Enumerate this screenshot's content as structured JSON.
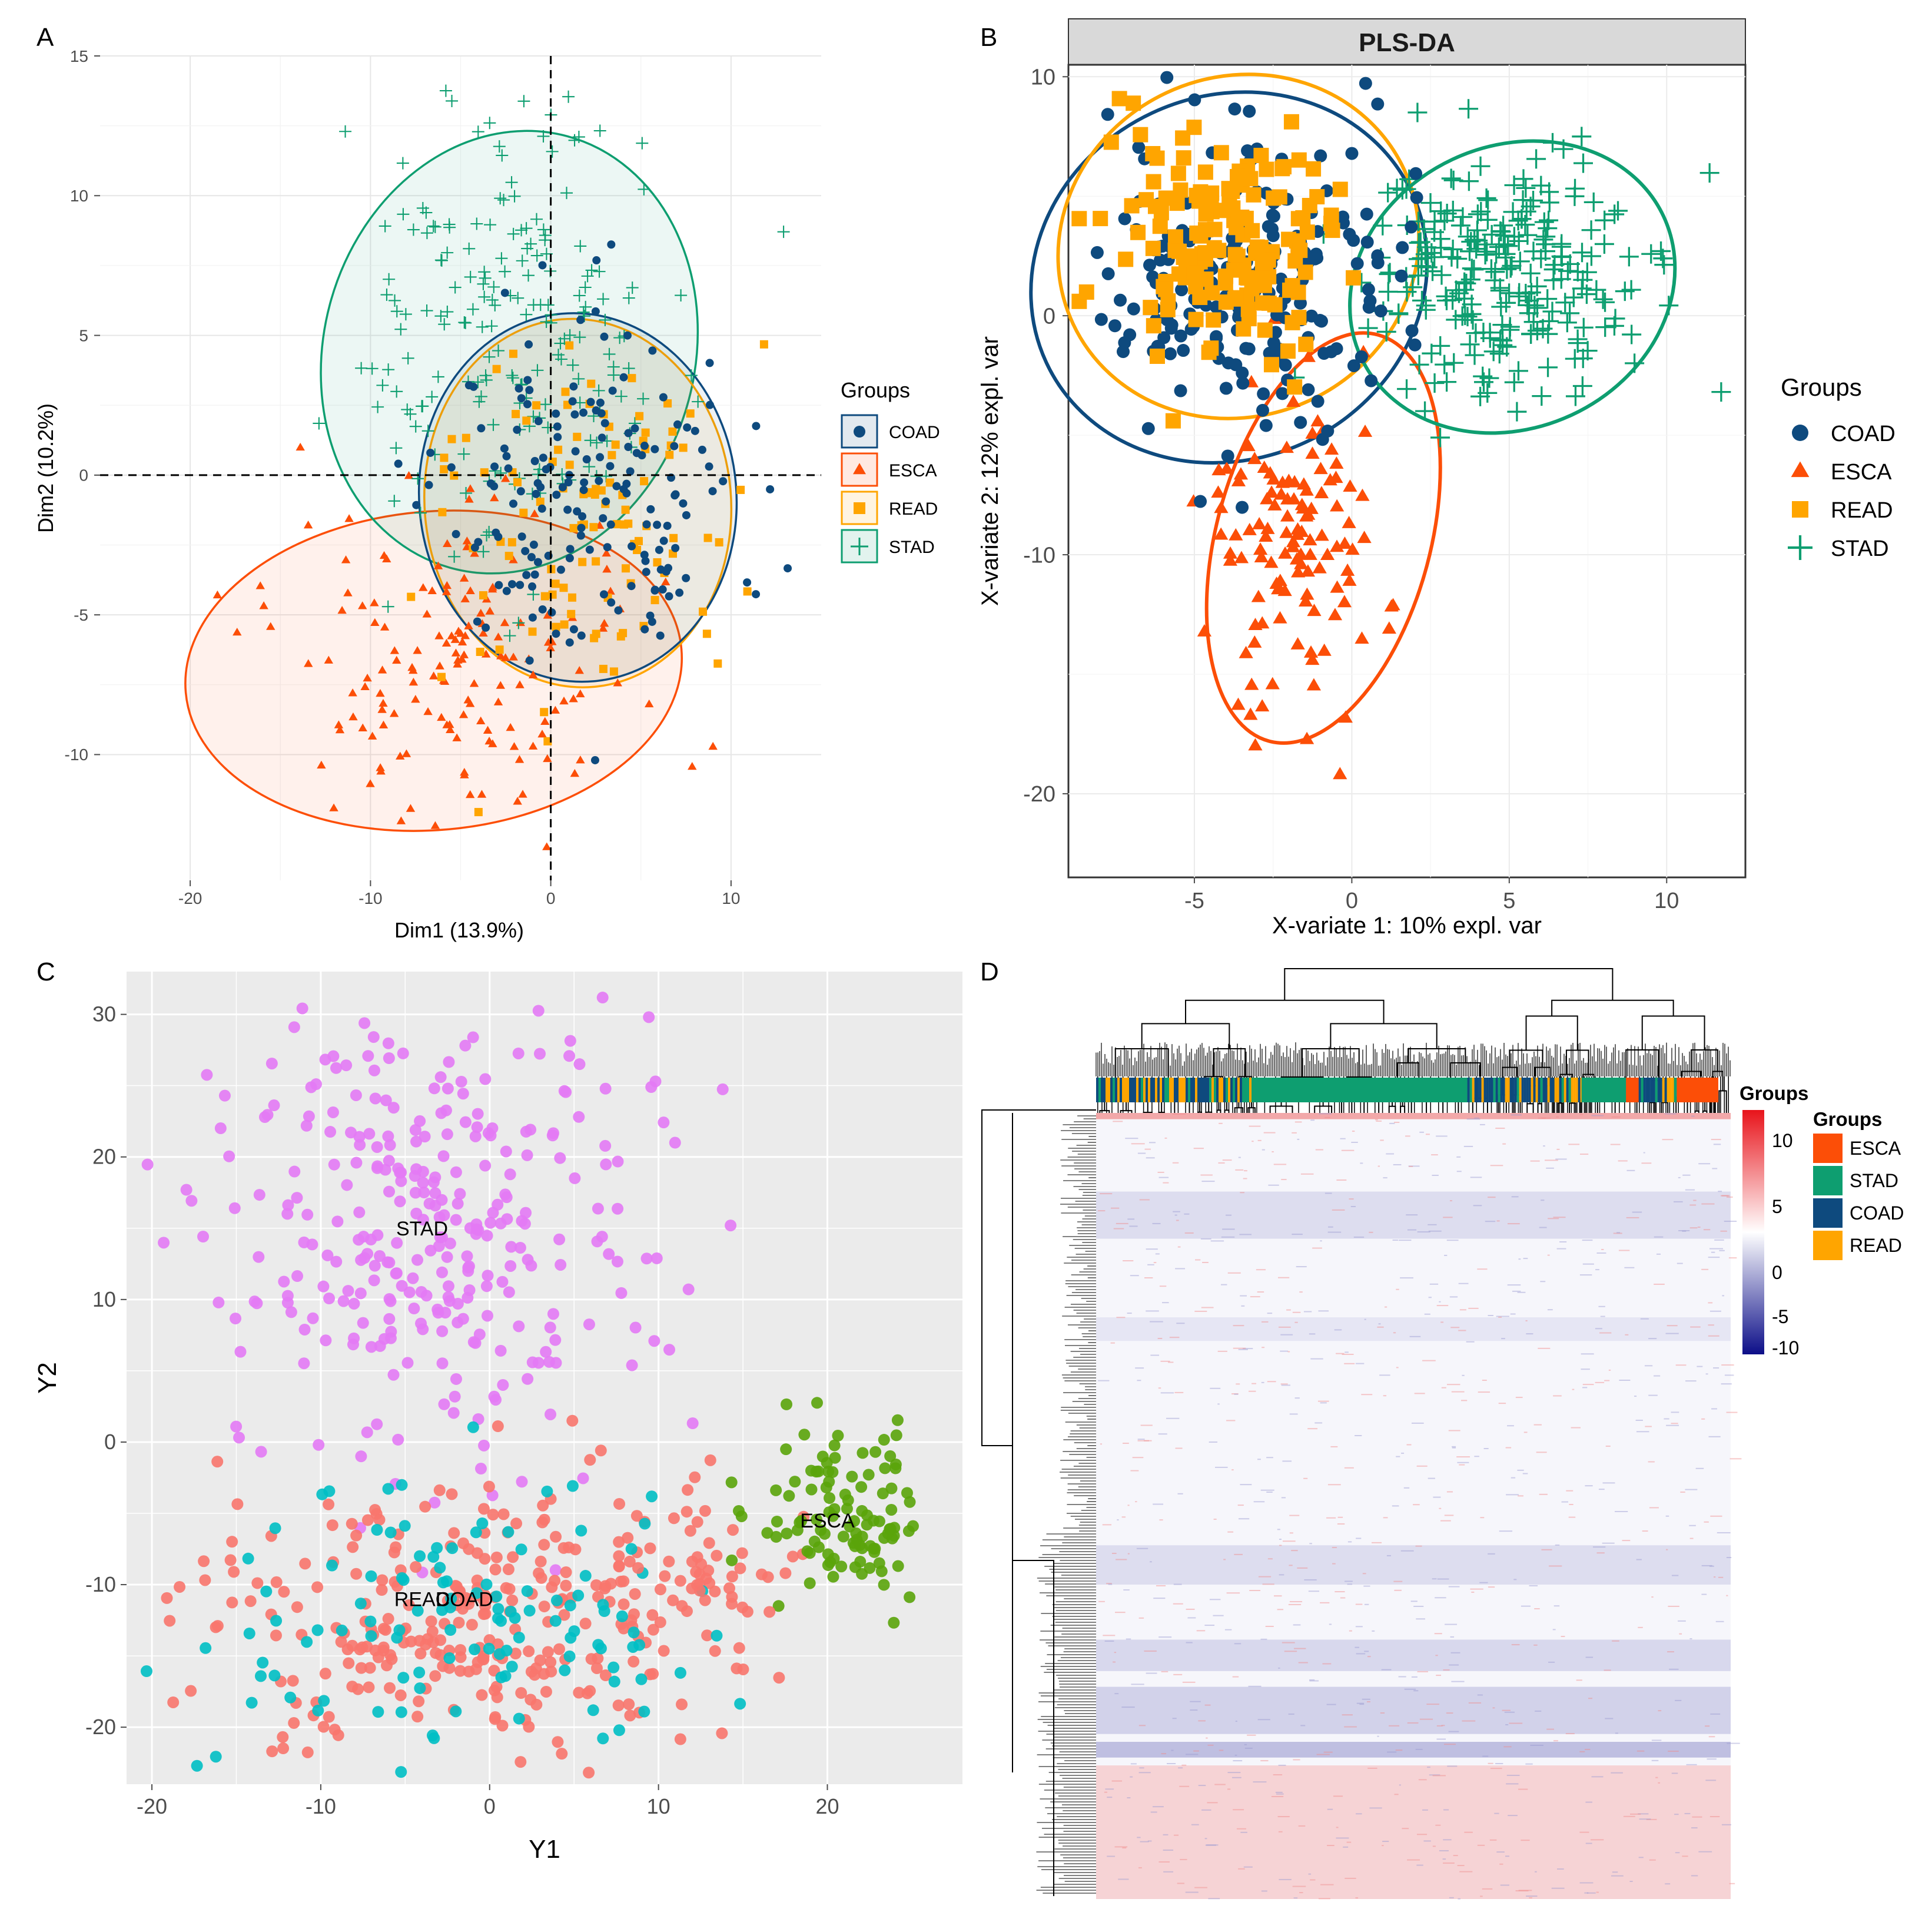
{
  "colors": {
    "COAD": "#0e4a7e",
    "ESCA": "#fc4e07",
    "READ": "#ffa500",
    "STAD": "#0e9e70",
    "tsne_purple": "#e37af5",
    "tsne_salmon": "#f8766d",
    "tsne_teal": "#00bfc4",
    "tsne_green": "#5aa40a",
    "heat_high": "#e8141b",
    "heat_low": "#0c0e88"
  },
  "panels": {
    "A": {
      "letter": "A"
    },
    "B": {
      "letter": "B"
    },
    "C": {
      "letter": "C"
    },
    "D": {
      "letter": "D"
    }
  },
  "chart_data": [
    {
      "id": "A",
      "type": "scatter",
      "title": "",
      "xlabel": "Dim1 (13.9%)",
      "ylabel": "Dim2 (10.2%)",
      "xlim": [
        -25,
        15
      ],
      "ylim": [
        -14.5,
        15
      ],
      "xticks": [
        -20,
        -10,
        0,
        10
      ],
      "yticks": [
        -10,
        -5,
        0,
        5,
        10,
        15
      ],
      "reference_lines": {
        "x": 0,
        "y": 0,
        "style": "dashed"
      },
      "grid": true,
      "legend": {
        "title": "Groups",
        "position": "right",
        "entries": [
          "COAD",
          "ESCA",
          "READ",
          "STAD"
        ]
      },
      "groups": [
        {
          "name": "COAD",
          "marker": "circle",
          "ellipse": {
            "cx": 1.5,
            "cy": -0.8,
            "rx": 8.8,
            "ry": 6.6,
            "angle": -5
          },
          "center": [
            2,
            -1
          ],
          "spread": [
            4.2,
            3.5
          ],
          "n": 170
        },
        {
          "name": "ESCA",
          "marker": "triangle",
          "ellipse": {
            "cx": -6.5,
            "cy": -7,
            "rx": 13.8,
            "ry": 5.7,
            "angle": -5
          },
          "center": [
            -5,
            -7
          ],
          "spread": [
            5,
            2.6
          ],
          "n": 160
        },
        {
          "name": "READ",
          "marker": "square",
          "ellipse": {
            "cx": 1.5,
            "cy": -1.0,
            "rx": 8.5,
            "ry": 6.6,
            "angle": -5
          },
          "center": [
            2,
            -1.5
          ],
          "spread": [
            4,
            3.2
          ],
          "n": 110
        },
        {
          "name": "STAD",
          "marker": "plus",
          "ellipse": {
            "cx": -2.3,
            "cy": 4.4,
            "rx": 10.3,
            "ry": 8.0,
            "angle": 15
          },
          "center": [
            -2,
            5
          ],
          "spread": [
            4.5,
            4
          ],
          "n": 200
        }
      ]
    },
    {
      "id": "B",
      "type": "scatter",
      "title": "PLS-DA",
      "xlabel": "X-variate 1: 10% expl. var",
      "ylabel": "X-variate 2: 12% expl. var",
      "xlim": [
        -9,
        12.5
      ],
      "ylim": [
        -23.5,
        10.5
      ],
      "xticks": [
        -5,
        0,
        5,
        10
      ],
      "yticks": [
        -20,
        -10,
        0,
        10
      ],
      "grid": true,
      "legend": {
        "title": "Groups",
        "position": "right",
        "entries": [
          "COAD",
          "ESCA",
          "READ",
          "STAD"
        ]
      },
      "groups": [
        {
          "name": "COAD",
          "marker": "circle",
          "ellipse": {
            "cx": -3.9,
            "cy": 1.6,
            "rx": 6.4,
            "ry": 7.6,
            "angle": -25
          },
          "center": [
            -3.5,
            1.5
          ],
          "spread": [
            2.2,
            3.2
          ],
          "n": 220
        },
        {
          "name": "ESCA",
          "marker": "triangle",
          "ellipse": {
            "cx": -0.9,
            "cy": -9.3,
            "rx": 3.4,
            "ry": 8.8,
            "angle": 15
          },
          "center": [
            -1.8,
            -9.5
          ],
          "spread": [
            1.4,
            3.5
          ],
          "n": 120
        },
        {
          "name": "READ",
          "marker": "square",
          "ellipse": {
            "cx": -3.6,
            "cy": 2.9,
            "rx": 5.8,
            "ry": 7.1,
            "angle": -25
          },
          "center": [
            -4.2,
            3.2
          ],
          "spread": [
            1.8,
            2.4
          ],
          "n": 160
        },
        {
          "name": "STAD",
          "marker": "plus",
          "ellipse": {
            "cx": 5.1,
            "cy": 1.2,
            "rx": 5.3,
            "ry": 5.9,
            "angle": -25
          },
          "center": [
            4.8,
            1.5
          ],
          "spread": [
            2.2,
            2.4
          ],
          "n": 260
        }
      ]
    },
    {
      "id": "C",
      "type": "scatter",
      "title": "",
      "xlabel": "Y1",
      "ylabel": "Y2",
      "xlim": [
        -21.5,
        28
      ],
      "ylim": [
        -24,
        33
      ],
      "xticks": [
        -20,
        -10,
        0,
        10,
        20
      ],
      "yticks": [
        -20,
        -10,
        0,
        10,
        20,
        30
      ],
      "grid": true,
      "annotations": [
        {
          "text": "STAD",
          "x": -4,
          "y": 15
        },
        {
          "text": "ESCA",
          "x": 20,
          "y": -5.5
        },
        {
          "text": "READ",
          "x": -4,
          "y": -11
        },
        {
          "text": "COAD",
          "x": -1.5,
          "y": -11
        }
      ],
      "clusters": [
        {
          "color_key": "tsne_purple",
          "center": [
            -4,
            15
          ],
          "spread": [
            6.5,
            8.5
          ],
          "n": 320
        },
        {
          "color_key": "tsne_salmon",
          "center": [
            0,
            -12
          ],
          "spread": [
            8,
            5
          ],
          "n": 320
        },
        {
          "color_key": "tsne_teal",
          "center": [
            -2,
            -12
          ],
          "spread": [
            7,
            5
          ],
          "n": 120
        },
        {
          "color_key": "tsne_green",
          "center": [
            21,
            -5.5
          ],
          "spread": [
            2.8,
            3
          ],
          "n": 110
        },
        {
          "color_key": "tsne_salmon",
          "center": [
            12.5,
            -9
          ],
          "spread": [
            1.5,
            2.5
          ],
          "n": 25
        }
      ]
    },
    {
      "id": "D",
      "type": "heatmap",
      "title": "",
      "color_legend": {
        "title": "Groups",
        "ticks": [
          "10",
          "5",
          "0",
          "-5",
          "-10"
        ]
      },
      "group_legend": {
        "title": "Groups",
        "entries": [
          "ESCA",
          "STAD",
          "COAD",
          "READ"
        ]
      },
      "annotation_bar_groups": [
        "COAD",
        "READ",
        "STAD",
        "COAD",
        "READ",
        "STAD",
        "ESCA"
      ]
    }
  ]
}
